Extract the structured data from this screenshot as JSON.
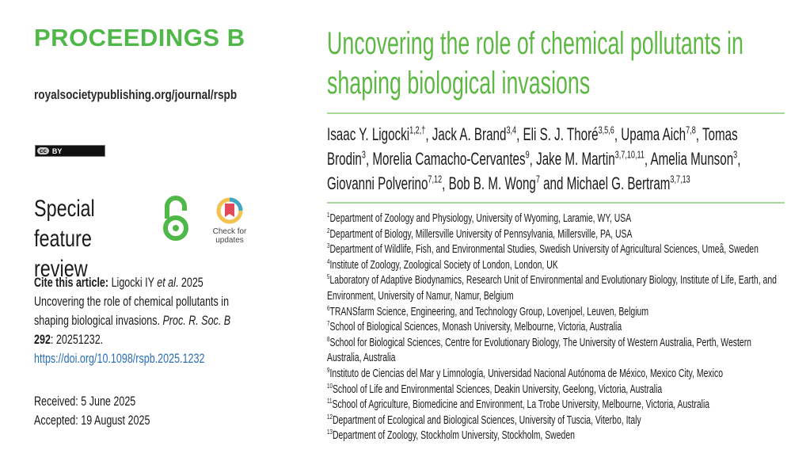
{
  "journal": "PROCEEDINGS B",
  "url": "royalsocietypublishing.org/journal/rspb",
  "license": {
    "cc": "cc",
    "by": "BY"
  },
  "article_type": [
    "Special feature",
    "review"
  ],
  "check_updates": [
    "Check for",
    "updates"
  ],
  "cite": {
    "label": "Cite this article:",
    "authors": "Ligocki IY",
    "etal": "et al",
    "year": ". 2025",
    "title": "Uncovering the role of chemical pollutants in shaping biological invasions.",
    "journal": "Proc. R. Soc. B",
    "volume": "292",
    "article": ": 20251232.",
    "doi": "https://doi.org/10.1098/rspb.2025.1232"
  },
  "dates": {
    "received": "Received: 5 June 2025",
    "accepted": "Accepted: 19 August 2025"
  },
  "title": "Uncovering the role of chemical pollutants in shaping biological invasions",
  "authors": [
    {
      "name": "Isaac Y. Ligocki",
      "sup": "1,2,†",
      "sep": ", "
    },
    {
      "name": "Jack A. Brand",
      "sup": "3,4",
      "sep": ", "
    },
    {
      "name": "Eli S. J. Thoré",
      "sup": "3,5,6",
      "sep": ", "
    },
    {
      "name": "Upama Aich",
      "sup": "7,8",
      "sep": ", "
    },
    {
      "name": "Tomas Brodin",
      "sup": "3",
      "sep": ", "
    },
    {
      "name": "Morelia Camacho-Cervantes",
      "sup": "9",
      "sep": ", "
    },
    {
      "name": "Jake M. Martin",
      "sup": "3,7,10,11",
      "sep": ", "
    },
    {
      "name": "Amelia Munson",
      "sup": "3",
      "sep": ", "
    },
    {
      "name": "Giovanni Polverino",
      "sup": "7,12",
      "sep": ", "
    },
    {
      "name": "Bob B. M. Wong",
      "sup": "7",
      "sep": " and "
    },
    {
      "name": "Michael G. Bertram",
      "sup": "3,7,13",
      "sep": ""
    }
  ],
  "affiliations": [
    {
      "n": "1",
      "text": "Department of Zoology and Physiology, University of Wyoming, Laramie, WY, USA"
    },
    {
      "n": "2",
      "text": "Department of Biology, Millersville University of Pennsylvania, Millersville, PA, USA"
    },
    {
      "n": "3",
      "text": "Department of Wildlife, Fish, and Environmental Studies, Swedish University of Agricultural Sciences, Umeå, Sweden"
    },
    {
      "n": "4",
      "text": "Institute of Zoology, Zoological Society of London, London, UK"
    },
    {
      "n": "5",
      "text": "Laboratory of Adaptive Biodynamics, Research Unit of Environmental and Evolutionary Biology, Institute of Life, Earth, and Environment, University of Namur, Namur, Belgium"
    },
    {
      "n": "6",
      "text": "TRANSfarm Science, Engineering, and Technology Group, Lovenjoel, Leuven, Belgium"
    },
    {
      "n": "7",
      "text": "School of Biological Sciences, Monash University, Melbourne, Victoria, Australia"
    },
    {
      "n": "8",
      "text": "School for Biological Sciences, Centre for Evolutionary Biology, The University of Western Australia, Perth, Western Australia, Australia"
    },
    {
      "n": "9",
      "text": "Instituto de Ciencias del Mar y Limnología, Universidad Nacional Autónoma de México, Mexico City, Mexico"
    },
    {
      "n": "10",
      "text": "School of Life and Environmental Sciences, Deakin University, Geelong, Victoria, Australia"
    },
    {
      "n": "11",
      "text": "School of Agriculture, Biomedicine and Environment, La Trobe University, Melbourne, Victoria, Australia"
    },
    {
      "n": "12",
      "text": "Department of Ecological and Biological Sciences, University of Tuscia, Viterbo, Italy"
    },
    {
      "n": "13",
      "text": "Department of Zoology, Stockholm University, Stockholm, Sweden"
    }
  ],
  "colors": {
    "accent": "#5db843",
    "rule": "#a6d89a",
    "link": "#2a6fb5"
  }
}
